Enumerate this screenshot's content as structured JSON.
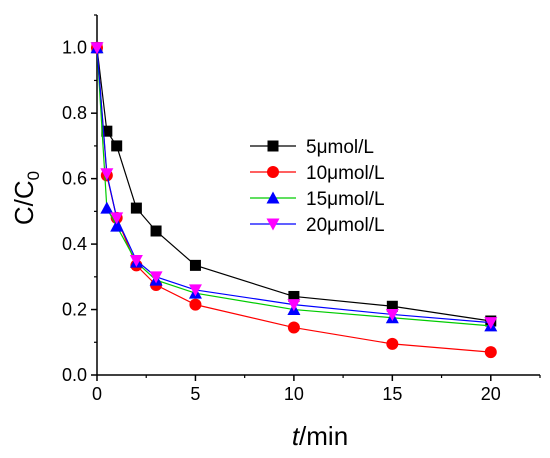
{
  "chart_data": {
    "type": "line",
    "xlabel_italic": "t",
    "xlabel_rest": "/min",
    "ylabel_main": "C/C",
    "ylabel_sub": "0",
    "xlim": [
      0,
      22.5
    ],
    "ylim": [
      0,
      1.1
    ],
    "xticks": [
      0,
      5,
      10,
      15,
      20
    ],
    "xtick_labels": [
      "0",
      "5",
      "10",
      "15",
      "20"
    ],
    "yticks": [
      0.0,
      0.2,
      0.4,
      0.6,
      0.8,
      1.0
    ],
    "ytick_labels": [
      "0.0",
      "0.2",
      "0.4",
      "0.6",
      "0.8",
      "1.0"
    ],
    "legend_position": "center-right",
    "grid": false,
    "series": [
      {
        "name": "5μmol/L",
        "color": "#000000",
        "marker": "square",
        "x": [
          0,
          0.5,
          1,
          2,
          3,
          5,
          10,
          15,
          20
        ],
        "y": [
          1.0,
          0.745,
          0.7,
          0.51,
          0.44,
          0.335,
          0.24,
          0.21,
          0.165
        ]
      },
      {
        "name": "10μmol/L",
        "color": "#ff0000",
        "marker": "circle",
        "x": [
          0,
          0.5,
          1,
          2,
          3,
          5,
          10,
          15,
          20
        ],
        "y": [
          1.0,
          0.61,
          0.48,
          0.335,
          0.275,
          0.215,
          0.145,
          0.095,
          0.07
        ]
      },
      {
        "name": "15μmol/L",
        "color": "#0000ff",
        "line_color": "#00cc00",
        "marker": "triangle-up",
        "x": [
          0,
          0.5,
          1,
          2,
          3,
          5,
          10,
          15,
          20
        ],
        "y": [
          1.0,
          0.51,
          0.455,
          0.345,
          0.29,
          0.25,
          0.2,
          0.175,
          0.15
        ]
      },
      {
        "name": "20μmol/L",
        "color": "#ff00ff",
        "line_color": "#0000ff",
        "marker": "triangle-down",
        "x": [
          0,
          0.5,
          1,
          2,
          3,
          5,
          10,
          15,
          20
        ],
        "y": [
          1.0,
          0.615,
          0.48,
          0.35,
          0.3,
          0.26,
          0.215,
          0.185,
          0.16
        ]
      }
    ]
  }
}
